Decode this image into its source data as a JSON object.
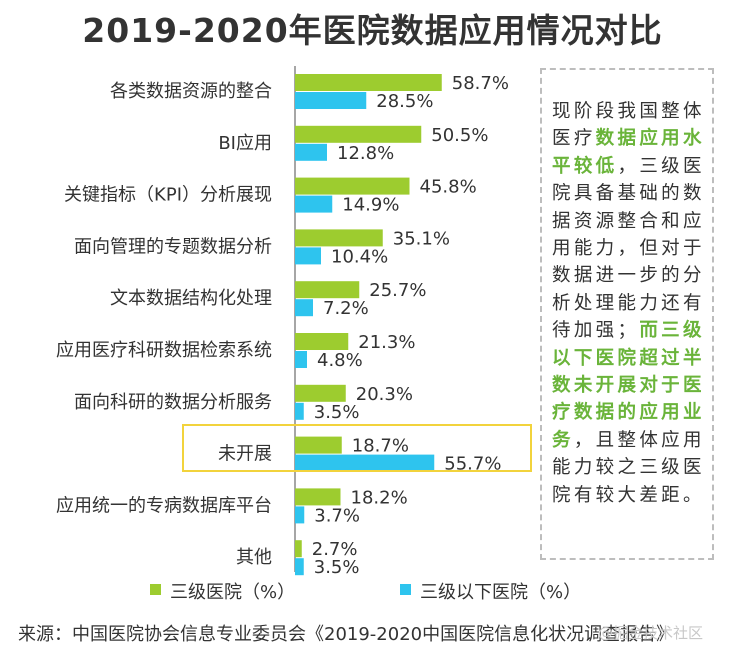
{
  "title": "2019-2020年医院数据应用情况对比",
  "colors": {
    "series_a": "#9dcc2f",
    "series_b": "#2ec4ee",
    "highlight_border": "#f2d33c",
    "note_highlight": "#6ab43a"
  },
  "note": [
    {
      "text": "现阶段我国整体医疗",
      "highlight": false
    },
    {
      "text": "数据应用水平较低",
      "highlight": true
    },
    {
      "text": "，三级医院具备基础的数据资源整合和应用能力，但对于数据进一步的分析处理能力还有待加强；",
      "highlight": false
    },
    {
      "text": "而三级以下医院超过半数未开展对于医疗数据的应用业务",
      "highlight": true
    },
    {
      "text": "，且整体应用能力较之三级医院有较大差距。",
      "highlight": false
    }
  ],
  "legend": {
    "series_a": "三级医院（%）",
    "series_b": "三级以下医院（%）"
  },
  "source": "来源：中国医院协会信息专业委员会《2019-2020中国医院信息化状况调查报告》",
  "watermark": "@掘金技术社区",
  "chart_data": {
    "type": "bar",
    "orientation": "horizontal",
    "categories": [
      "各类数据资源的整合",
      "BI应用",
      "关键指标（KPI）分析展现",
      "面向管理的专题数据分析",
      "文本数据结构化处理",
      "应用医疗科研数据检索系统",
      "面向科研的数据分析服务",
      "未开展",
      "应用统一的专病数据库平台",
      "其他"
    ],
    "series": [
      {
        "name": "三级医院（%）",
        "values": [
          58.7,
          50.5,
          45.8,
          35.1,
          25.7,
          21.3,
          20.3,
          18.7,
          18.2,
          2.7
        ]
      },
      {
        "name": "三级以下医院（%）",
        "values": [
          28.5,
          12.8,
          14.9,
          10.4,
          7.2,
          4.8,
          3.5,
          55.7,
          3.7,
          3.5
        ]
      }
    ],
    "value_suffix": "%",
    "highlighted_category": "未开展",
    "legend_position": "bottom",
    "grid": false
  }
}
